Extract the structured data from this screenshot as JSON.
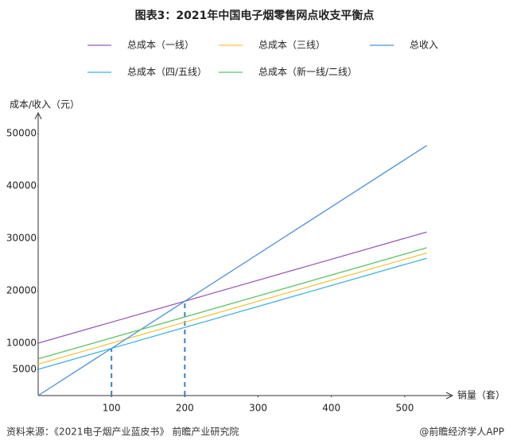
{
  "chart_data": {
    "type": "line",
    "title": "图表3：2021年中国电子烟零售网点收支平衡点",
    "y_label": "成本/收入（元）",
    "x_label": "销量（套）",
    "legend": "top",
    "xlim": [
      0,
      550
    ],
    "ylim": [
      0,
      50000
    ],
    "xticks": [
      100,
      200,
      300,
      400,
      500
    ],
    "yticks": [
      5000,
      10000,
      20000,
      30000,
      40000,
      50000
    ],
    "series": [
      {
        "name": "总成本（一线）",
        "color": "#9b59b6",
        "x": [
          0,
          530
        ],
        "values": [
          10000,
          31200
        ]
      },
      {
        "name": "总成本（三线）",
        "color": "#f5c342",
        "x": [
          0,
          530
        ],
        "values": [
          6000,
          27200
        ]
      },
      {
        "name": "总收入",
        "color": "#4a90d9",
        "x": [
          0,
          530
        ],
        "values": [
          0,
          47700
        ]
      },
      {
        "name": "总成本（四/五线）",
        "color": "#3fb0e0",
        "x": [
          0,
          530
        ],
        "values": [
          5000,
          26200
        ]
      },
      {
        "name": "总成本（新一线/二线）",
        "color": "#5cc466",
        "x": [
          0,
          530
        ],
        "values": [
          7000,
          28200
        ]
      }
    ],
    "break_even_points": [
      {
        "x": 100,
        "y": 9000
      },
      {
        "x": 200,
        "y": 18000
      }
    ]
  },
  "footer": {
    "source": "资料来源：《2021电子烟产业蓝皮书》 前瞻产业研究院",
    "brand": "@前瞻经济学人APP"
  }
}
